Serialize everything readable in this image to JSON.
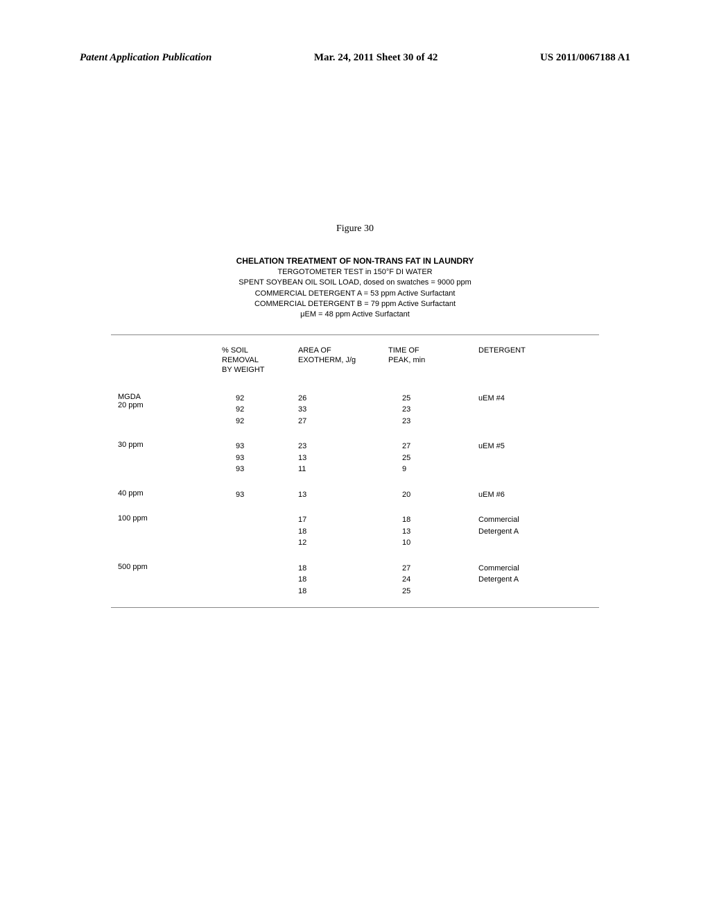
{
  "header": {
    "left": "Patent Application Publication",
    "center": "Mar. 24, 2011  Sheet 30 of 42",
    "right": "US 2011/0067188 A1"
  },
  "figure": {
    "caption": "Figure 30",
    "title": "CHELATION TREATMENT OF NON-TRANS FAT IN LAUNDRY",
    "subtitle1": "TERGOTOMETER TEST in 150°F DI WATER",
    "subtitle2": "SPENT SOYBEAN OIL SOIL LOAD, dosed on swatches = 9000 ppm",
    "subtitle3": "COMMERCIAL DETERGENT A = 53 ppm Active Surfactant",
    "subtitle4": "COMMERCIAL DETERGENT B = 79 ppm Active Surfactant",
    "subtitle5": "μEM = 48 ppm Active Surfactant"
  },
  "table": {
    "headers": {
      "removal": "% SOIL\nREMOVAL\nBY WEIGHT",
      "exotherm": "AREA OF\nEXOTHERM, J/g",
      "time": "TIME OF\nPEAK, min",
      "detergent": "DETERGENT"
    },
    "rows": [
      {
        "label1": "MGDA",
        "label2": "20 ppm",
        "removal": [
          "92",
          "92",
          "92"
        ],
        "exotherm": [
          "26",
          "33",
          "27"
        ],
        "time": [
          "25",
          "23",
          "23"
        ],
        "detergent": [
          "uEM #4",
          "",
          ""
        ]
      },
      {
        "label1": "",
        "label2": "30 ppm",
        "removal": [
          "93",
          "93",
          "93"
        ],
        "exotherm": [
          "23",
          "13",
          "11"
        ],
        "time": [
          "27",
          "25",
          "9"
        ],
        "detergent": [
          "uEM #5",
          "",
          ""
        ]
      },
      {
        "label1": "",
        "label2": "40 ppm",
        "removal": [
          "93"
        ],
        "exotherm": [
          "13"
        ],
        "time": [
          "20"
        ],
        "detergent": [
          "uEM #6"
        ]
      },
      {
        "label1": "",
        "label2": "100 ppm",
        "removal": [
          "",
          "",
          ""
        ],
        "exotherm": [
          "17",
          "18",
          "12"
        ],
        "time": [
          "18",
          "13",
          "10"
        ],
        "detergent": [
          "Commercial",
          "Detergent A",
          ""
        ]
      },
      {
        "label1": "",
        "label2": "500 ppm",
        "removal": [
          "",
          "",
          ""
        ],
        "exotherm": [
          "18",
          "18",
          "18"
        ],
        "time": [
          "27",
          "24",
          "25"
        ],
        "detergent": [
          "Commercial",
          "Detergent A",
          ""
        ]
      }
    ]
  }
}
